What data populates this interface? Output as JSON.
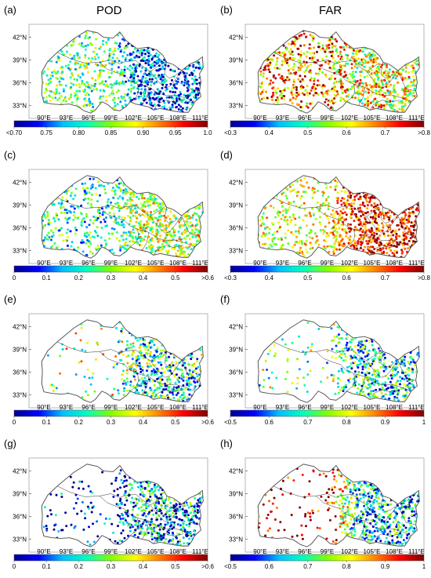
{
  "figure": {
    "column_titles": [
      "POD",
      "FAR"
    ],
    "lat_ticks": [
      "42°N",
      "39°N",
      "36°N",
      "33°N"
    ],
    "lon_ticks": [
      "90°E",
      "93°E",
      "96°E",
      "99°E",
      "102°E",
      "105°E",
      "108°E",
      "111°E"
    ],
    "colormap": "jet",
    "colormap_stops": [
      "#00008f",
      "#0000ff",
      "#00bfff",
      "#00ffbf",
      "#80ff00",
      "#ffff00",
      "#ff8000",
      "#ff0000",
      "#800000"
    ],
    "boundary_color": "#555555"
  },
  "panels": [
    {
      "label": "(a)",
      "title": "POD",
      "cb_ticks": [
        "<0.70",
        "0.75",
        "0.80",
        "0.85",
        "0.90",
        "0.95",
        "1.0"
      ],
      "seed": 11,
      "west_density": 0.55,
      "east_density": 1.0,
      "east_level": 0.18,
      "west_level": 0.45,
      "spread": 0.25
    },
    {
      "label": "(b)",
      "title": "FAR",
      "cb_ticks": [
        "<0.3",
        "0.4",
        "0.5",
        "0.6",
        "0.7",
        ">0.8"
      ],
      "seed": 23,
      "west_density": 0.55,
      "east_density": 1.0,
      "east_level": 0.6,
      "west_level": 0.75,
      "spread": 0.3
    },
    {
      "label": "(c)",
      "title": "",
      "cb_ticks": [
        "0",
        "0.1",
        "0.2",
        "0.3",
        "0.4",
        "0.5",
        ">0.6"
      ],
      "seed": 37,
      "west_density": 0.45,
      "east_density": 1.0,
      "east_level": 0.55,
      "west_level": 0.35,
      "spread": 0.25
    },
    {
      "label": "(d)",
      "title": "",
      "cb_ticks": [
        "<0.3",
        "0.4",
        "0.5",
        "0.6",
        "0.7",
        ">0.8"
      ],
      "seed": 41,
      "west_density": 0.45,
      "east_density": 1.0,
      "east_level": 0.85,
      "west_level": 0.6,
      "spread": 0.2
    },
    {
      "label": "(e)",
      "title": "",
      "cb_ticks": [
        "0",
        "0.1",
        "0.2",
        "0.3",
        "0.4",
        "0.5",
        ">0.6"
      ],
      "seed": 53,
      "west_density": 0.08,
      "east_density": 0.9,
      "east_level": 0.35,
      "west_level": 0.5,
      "spread": 0.35
    },
    {
      "label": "(f)",
      "title": "",
      "cb_ticks": [
        "<0.5",
        "0.6",
        "0.7",
        "0.8",
        "0.9",
        "1"
      ],
      "seed": 67,
      "west_density": 0.08,
      "east_density": 0.9,
      "east_level": 0.35,
      "west_level": 0.45,
      "spread": 0.3
    },
    {
      "label": "(g)",
      "title": "",
      "cb_ticks": [
        "0",
        "0.1",
        "0.2",
        "0.3",
        "0.4",
        "0.5",
        ">0.6"
      ],
      "seed": 79,
      "west_density": 0.1,
      "east_density": 0.95,
      "east_level": 0.25,
      "west_level": 0.05,
      "spread": 0.35
    },
    {
      "label": "(h)",
      "title": "",
      "cb_ticks": [
        "<0.5",
        "0.6",
        "0.7",
        "0.8",
        "0.9",
        "1"
      ],
      "seed": 83,
      "west_density": 0.1,
      "east_density": 0.95,
      "east_level": 0.3,
      "west_level": 0.95,
      "spread": 0.3
    }
  ]
}
